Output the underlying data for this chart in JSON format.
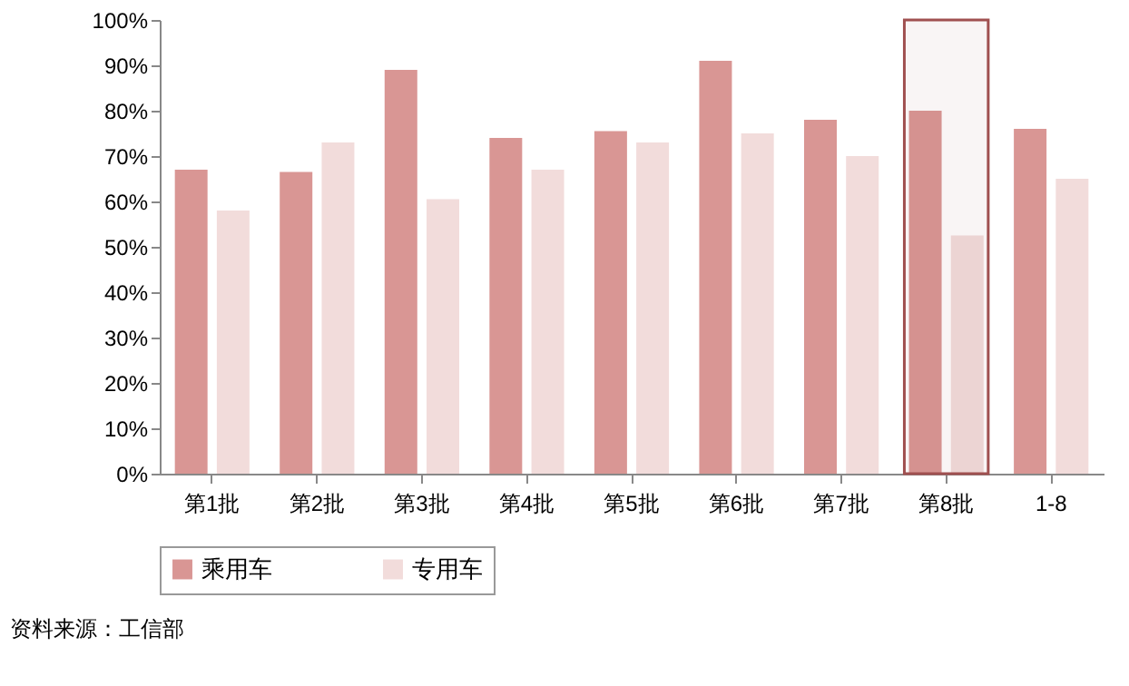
{
  "chart_data": {
    "type": "bar",
    "categories": [
      "第1批",
      "第2批",
      "第3批",
      "第4批",
      "第5批",
      "第6批",
      "第7批",
      "第8批",
      "1-8"
    ],
    "series": [
      {
        "name": "乘用车",
        "color": "#d99694",
        "values": [
          67,
          66.5,
          89,
          74,
          75.5,
          91,
          78,
          80,
          76
        ]
      },
      {
        "name": "专用车",
        "color": "#f2dcdb",
        "values": [
          58,
          73,
          60.5,
          67,
          73,
          75,
          70,
          52.5,
          65
        ]
      }
    ],
    "ylim": [
      0,
      100
    ],
    "yticks": [
      {
        "value": 0,
        "label": "0%"
      },
      {
        "value": 10,
        "label": "10%"
      },
      {
        "value": 20,
        "label": "20%"
      },
      {
        "value": 30,
        "label": "30%"
      },
      {
        "value": 40,
        "label": "40%"
      },
      {
        "value": 50,
        "label": "50%"
      },
      {
        "value": 60,
        "label": "60%"
      },
      {
        "value": 70,
        "label": "70%"
      },
      {
        "value": 80,
        "label": "80%"
      },
      {
        "value": 90,
        "label": "90%"
      },
      {
        "value": 100,
        "label": "100%"
      }
    ],
    "bands": [
      {
        "axis": "x",
        "from": "第8批",
        "to": "第8批",
        "color": "#a05050"
      }
    ],
    "grid": false,
    "legend": "bottom",
    "annotations": [
      "资料来源：工信部"
    ]
  }
}
